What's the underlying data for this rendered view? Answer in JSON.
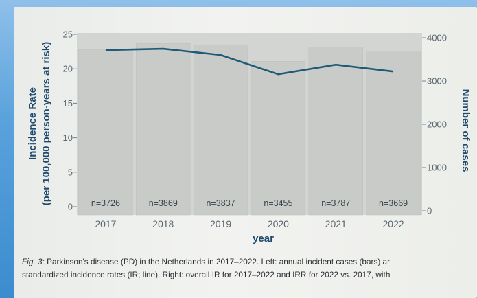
{
  "chart_data": {
    "type": "bar",
    "title": "",
    "xlabel": "year",
    "ylabel_left": "Incidence Rate\n(per 100,000 person-years at risk)",
    "ylabel_right": "Number of cases",
    "categories": [
      "2017",
      "2018",
      "2019",
      "2020",
      "2021",
      "2022"
    ],
    "bars": {
      "name": "Number of cases",
      "values": [
        3726,
        3869,
        3837,
        3455,
        3787,
        3669
      ],
      "labels": [
        "n=3726",
        "n=3869",
        "n=3837",
        "n=3455",
        "n=3787",
        "n=3669"
      ],
      "color": "#c9cbc8"
    },
    "line": {
      "name": "Incidence Rate",
      "values": [
        22.7,
        22.9,
        22.0,
        19.2,
        20.6,
        19.6
      ],
      "color": "#1f5a78"
    },
    "ylim_left": [
      0,
      25
    ],
    "yticks_left": [
      "0",
      "5",
      "10",
      "15",
      "20",
      "25"
    ],
    "ylim_right": [
      0,
      4000
    ],
    "yticks_right": [
      "0",
      "1000",
      "2000",
      "3000",
      "4000"
    ],
    "grid": false,
    "legend": "none"
  },
  "caption": {
    "fig_label": "Fig. 3:",
    "line1_rest": " Parkinson's disease (PD) in the Netherlands in 2017–2022. Left: annual incident cases (bars) ar",
    "line2": "standardized incidence rates (IR; line). Right: overall IR for 2017–2022 and IRR for 2022 vs. 2017, with"
  },
  "colors": {
    "panel_bg": "#d3d5d2",
    "bar": "#c9cbc8",
    "line": "#1f5a78",
    "axis_text": "#1f4a6e"
  }
}
